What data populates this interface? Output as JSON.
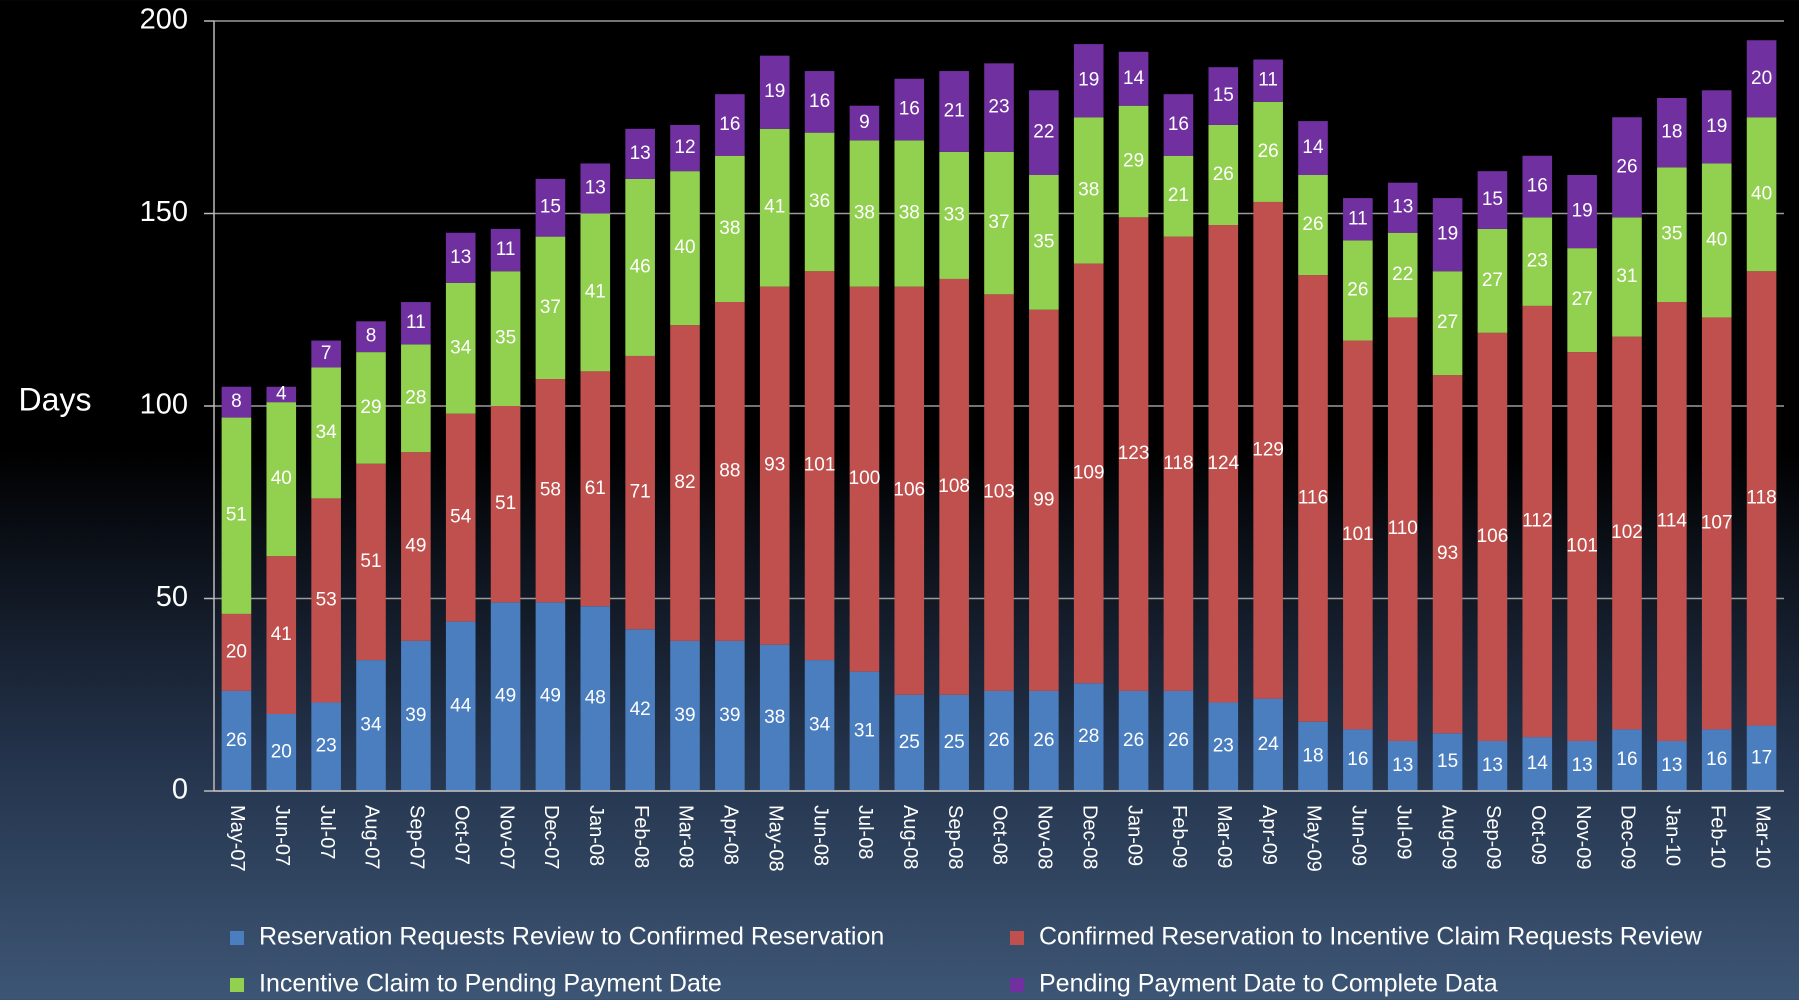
{
  "chart_data": {
    "type": "stacked_bar",
    "y_label": "Days",
    "categories": [
      "May-07",
      "Jun-07",
      "Jul-07",
      "Aug-07",
      "Sep-07",
      "Oct-07",
      "Nov-07",
      "Dec-07",
      "Jan-08",
      "Feb-08",
      "Mar-08",
      "Apr-08",
      "May-08",
      "Jun-08",
      "Jul-08",
      "Aug-08",
      "Sep-08",
      "Oct-08",
      "Nov-08",
      "Dec-08",
      "Jan-09",
      "Feb-09",
      "Mar-09",
      "Apr-09",
      "May-09",
      "Jun-09",
      "Jul-09",
      "Aug-09",
      "Sep-09",
      "Oct-09",
      "Nov-09",
      "Dec-09",
      "Jan-10",
      "Feb-10",
      "Mar-10"
    ],
    "series": [
      {
        "name": "Reservation Requests Review to Confirmed Reservation",
        "color": "#4a7ebf",
        "values": [
          26,
          20,
          23,
          34,
          39,
          44,
          49,
          49,
          48,
          42,
          39,
          39,
          38,
          34,
          31,
          25,
          25,
          26,
          26,
          28,
          26,
          26,
          23,
          24,
          18,
          16,
          13,
          15,
          13,
          14,
          13,
          16,
          13,
          16,
          17
        ]
      },
      {
        "name": "Confirmed Reservation to Incentive Claim Requests Review",
        "color": "#c0504d",
        "values": [
          20,
          41,
          53,
          51,
          49,
          54,
          51,
          58,
          61,
          71,
          82,
          88,
          93,
          101,
          100,
          106,
          108,
          103,
          99,
          109,
          123,
          118,
          124,
          129,
          116,
          101,
          110,
          93,
          106,
          112,
          101,
          102,
          114,
          107,
          118
        ]
      },
      {
        "name": "Incentive Claim to Pending Payment Date",
        "color": "#92d050",
        "values": [
          51,
          40,
          34,
          29,
          28,
          34,
          35,
          37,
          41,
          46,
          40,
          38,
          41,
          36,
          38,
          38,
          33,
          37,
          35,
          38,
          29,
          21,
          26,
          26,
          26,
          26,
          22,
          27,
          27,
          23,
          27,
          31,
          35,
          40,
          40
        ]
      },
      {
        "name": "Pending Payment Date to Complete Data",
        "color": "#7030a0",
        "values": [
          8,
          4,
          7,
          8,
          11,
          13,
          11,
          15,
          13,
          13,
          12,
          16,
          19,
          16,
          9,
          16,
          21,
          23,
          22,
          19,
          14,
          16,
          15,
          11,
          14,
          11,
          13,
          19,
          15,
          16,
          19,
          26,
          18,
          19,
          20
        ]
      }
    ],
    "ylim": [
      0,
      200
    ],
    "yticks": [
      0,
      50,
      100,
      150,
      200
    ],
    "grid": true
  }
}
